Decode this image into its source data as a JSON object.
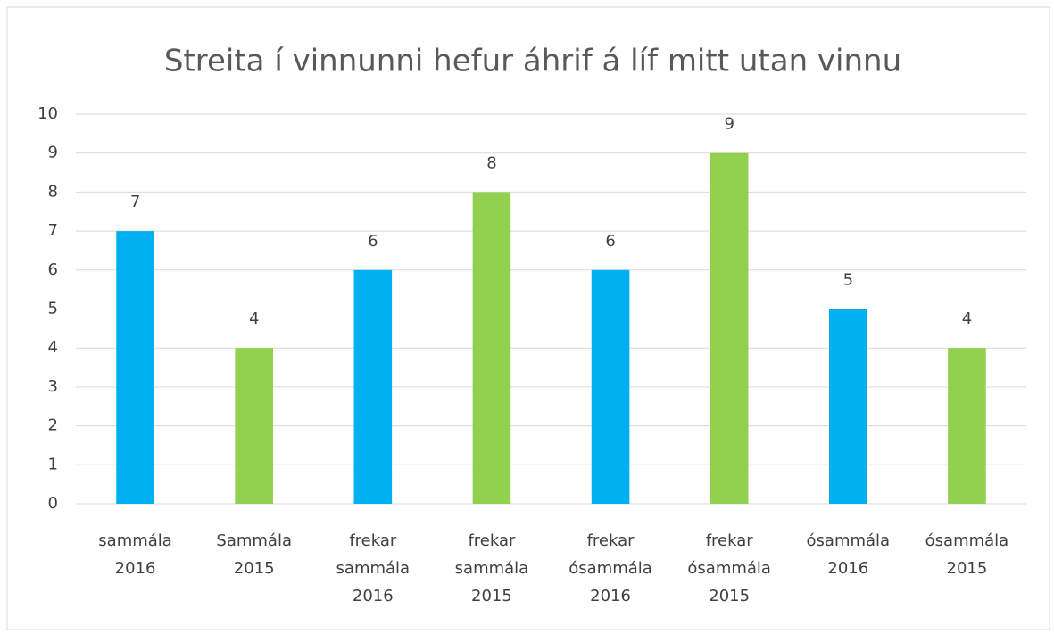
{
  "chart_data": {
    "type": "bar",
    "title": "Streita í vinnunni hefur áhrif á líf mitt utan vinnu",
    "categories": [
      "sammála 2016",
      "Sammála 2015",
      "frekar sammála 2016",
      "frekar sammála 2015",
      "frekar ósammála 2016",
      "frekar ósammála 2015",
      "ósammála 2016",
      "ósammála 2015"
    ],
    "values": [
      7,
      4,
      6,
      8,
      6,
      9,
      5,
      4
    ],
    "colors": [
      "#00b0f0",
      "#92d050",
      "#00b0f0",
      "#92d050",
      "#00b0f0",
      "#92d050",
      "#00b0f0",
      "#92d050"
    ],
    "ylim": [
      0,
      10
    ],
    "yticks": [
      0,
      1,
      2,
      3,
      4,
      5,
      6,
      7,
      8,
      9,
      10
    ],
    "grid": true
  }
}
